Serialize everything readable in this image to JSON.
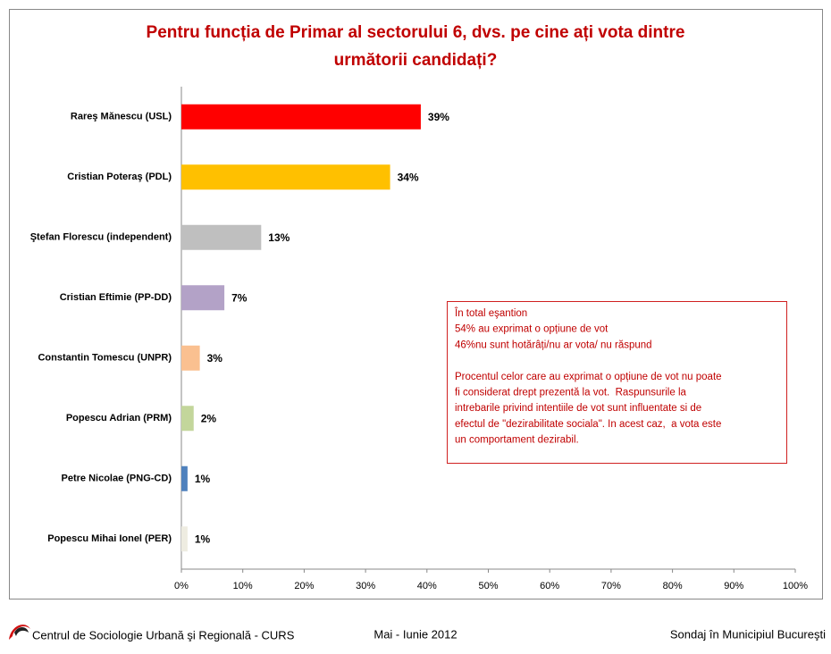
{
  "chart_data": {
    "type": "bar",
    "orientation": "horizontal",
    "title": [
      "Pentru funcția de Primar al sectorului 6, dvs. pe cine ați vota dintre",
      "următorii candidați?"
    ],
    "categories": [
      "Rareş Mănescu (USL)",
      "Cristian Poteraş (PDL)",
      "Ştefan Florescu (independent)",
      "Cristian Eftimie (PP-DD)",
      "Constantin Tomescu (UNPR)",
      "Popescu Adrian (PRM)",
      "Petre Nicolae (PNG-CD)",
      "Popescu Mihai Ionel (PER)"
    ],
    "values": [
      39,
      34,
      13,
      7,
      3,
      2,
      1,
      1
    ],
    "value_labels": [
      "39%",
      "34%",
      "13%",
      "7%",
      "3%",
      "2%",
      "1%",
      "1%"
    ],
    "colors": [
      "#ff0000",
      "#ffc000",
      "#bfbfbf",
      "#b3a2c7",
      "#fac090",
      "#c3d69b",
      "#4f81bd",
      "#eeece1"
    ],
    "xlim": [
      0,
      100
    ],
    "xticks": [
      {
        "value": 0,
        "label": "0%"
      },
      {
        "value": 10,
        "label": "10%"
      },
      {
        "value": 20,
        "label": "20%"
      },
      {
        "value": 30,
        "label": "30%"
      },
      {
        "value": 40,
        "label": "40%"
      },
      {
        "value": 50,
        "label": "50%"
      },
      {
        "value": 60,
        "label": "60%"
      },
      {
        "value": 70,
        "label": "70%"
      },
      {
        "value": 80,
        "label": "80%"
      },
      {
        "value": 90,
        "label": "90%"
      },
      {
        "value": 100,
        "label": "100%"
      }
    ],
    "grid": false,
    "annotation": [
      [
        "În total eşantion",
        "54% au exprimat o opțiune de vot",
        "46%nu sunt hotărâți/nu ar vota/ nu răspund"
      ],
      [
        "Procentul celor care au exprimat o opțiune de vot nu poate",
        "fi considerat drept prezentă la vot.  Raspunsurile la",
        "intrebarile privind intentiile de vot sunt influentate si de",
        "efectul de \"dezirabilitate sociala\". In acest caz,  a vota este",
        "un comportament dezirabil."
      ]
    ]
  },
  "footer": {
    "left": "Centrul de Sociologie Urbană şi Regională - CURS",
    "center": "Mai - Iunie 2012",
    "right": "Sondaj în Municipiul Bucureşti"
  }
}
